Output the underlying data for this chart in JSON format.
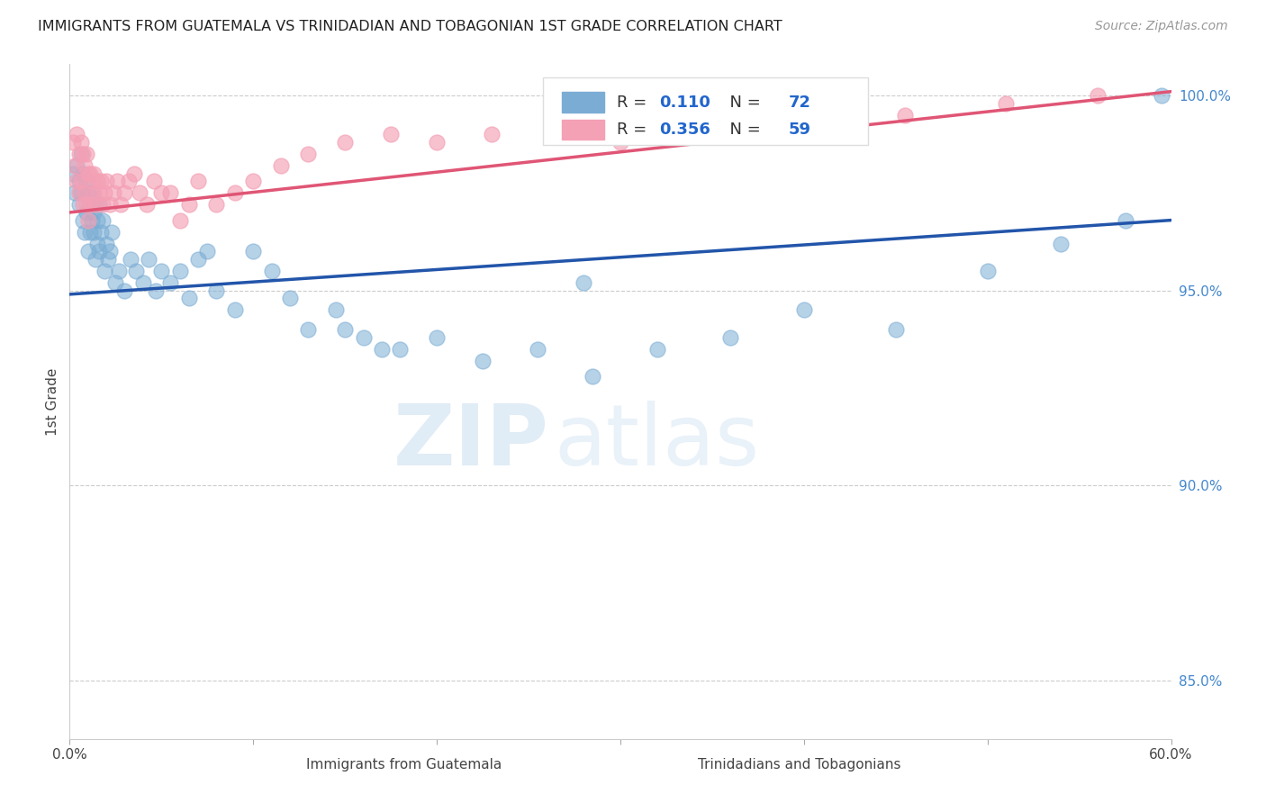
{
  "title": "IMMIGRANTS FROM GUATEMALA VS TRINIDADIAN AND TOBAGONIAN 1ST GRADE CORRELATION CHART",
  "source": "Source: ZipAtlas.com",
  "ylabel": "1st Grade",
  "xlim": [
    0.0,
    0.6
  ],
  "ylim": [
    0.835,
    1.008
  ],
  "yticks": [
    0.85,
    0.9,
    0.95,
    1.0
  ],
  "ytick_labels": [
    "85.0%",
    "90.0%",
    "95.0%",
    "100.0%"
  ],
  "blue_R": "0.110",
  "blue_N": "72",
  "pink_R": "0.356",
  "pink_N": "59",
  "blue_color": "#7BADD4",
  "pink_color": "#F4A0B5",
  "blue_line_color": "#2255AA",
  "pink_line_color": "#E05575",
  "legend_label_blue": "Immigrants from Guatemala",
  "legend_label_pink": "Trinidadians and Tobagonians",
  "watermark_zip": "ZIP",
  "watermark_atlas": "atlas",
  "blue_line_x0": 0.0,
  "blue_line_y0": 0.949,
  "blue_line_x1": 0.6,
  "blue_line_y1": 0.968,
  "pink_line_x0": 0.0,
  "pink_line_y0": 0.97,
  "pink_line_x1": 0.6,
  "pink_line_y1": 1.001,
  "blue_x": [
    0.002,
    0.003,
    0.004,
    0.005,
    0.005,
    0.006,
    0.006,
    0.007,
    0.007,
    0.008,
    0.008,
    0.009,
    0.009,
    0.01,
    0.01,
    0.011,
    0.011,
    0.012,
    0.012,
    0.013,
    0.013,
    0.014,
    0.014,
    0.015,
    0.015,
    0.016,
    0.016,
    0.017,
    0.018,
    0.019,
    0.02,
    0.021,
    0.022,
    0.023,
    0.025,
    0.027,
    0.03,
    0.033,
    0.036,
    0.04,
    0.043,
    0.047,
    0.05,
    0.055,
    0.06,
    0.065,
    0.07,
    0.08,
    0.09,
    0.1,
    0.11,
    0.12,
    0.13,
    0.145,
    0.16,
    0.18,
    0.2,
    0.225,
    0.255,
    0.285,
    0.32,
    0.36,
    0.4,
    0.45,
    0.5,
    0.54,
    0.575,
    0.595,
    0.15,
    0.17,
    0.075,
    0.28
  ],
  "blue_y": [
    0.98,
    0.975,
    0.982,
    0.978,
    0.972,
    0.985,
    0.975,
    0.98,
    0.968,
    0.975,
    0.965,
    0.978,
    0.97,
    0.975,
    0.96,
    0.972,
    0.965,
    0.975,
    0.968,
    0.97,
    0.965,
    0.972,
    0.958,
    0.968,
    0.962,
    0.972,
    0.96,
    0.965,
    0.968,
    0.955,
    0.962,
    0.958,
    0.96,
    0.965,
    0.952,
    0.955,
    0.95,
    0.958,
    0.955,
    0.952,
    0.958,
    0.95,
    0.955,
    0.952,
    0.955,
    0.948,
    0.958,
    0.95,
    0.945,
    0.96,
    0.955,
    0.948,
    0.94,
    0.945,
    0.938,
    0.935,
    0.938,
    0.932,
    0.935,
    0.928,
    0.935,
    0.938,
    0.945,
    0.94,
    0.955,
    0.962,
    0.968,
    1.0,
    0.94,
    0.935,
    0.96,
    0.952
  ],
  "pink_x": [
    0.002,
    0.003,
    0.004,
    0.004,
    0.005,
    0.005,
    0.006,
    0.006,
    0.007,
    0.007,
    0.008,
    0.008,
    0.009,
    0.009,
    0.01,
    0.01,
    0.011,
    0.011,
    0.012,
    0.013,
    0.013,
    0.014,
    0.015,
    0.016,
    0.017,
    0.018,
    0.019,
    0.02,
    0.022,
    0.024,
    0.026,
    0.028,
    0.03,
    0.032,
    0.035,
    0.038,
    0.042,
    0.046,
    0.05,
    0.055,
    0.06,
    0.065,
    0.07,
    0.08,
    0.09,
    0.1,
    0.115,
    0.13,
    0.15,
    0.175,
    0.2,
    0.23,
    0.265,
    0.3,
    0.345,
    0.4,
    0.455,
    0.51,
    0.56
  ],
  "pink_y": [
    0.988,
    0.982,
    0.99,
    0.978,
    0.985,
    0.975,
    0.988,
    0.978,
    0.985,
    0.972,
    0.982,
    0.975,
    0.985,
    0.972,
    0.98,
    0.968,
    0.98,
    0.972,
    0.978,
    0.98,
    0.975,
    0.972,
    0.978,
    0.975,
    0.978,
    0.972,
    0.975,
    0.978,
    0.972,
    0.975,
    0.978,
    0.972,
    0.975,
    0.978,
    0.98,
    0.975,
    0.972,
    0.978,
    0.975,
    0.975,
    0.968,
    0.972,
    0.978,
    0.972,
    0.975,
    0.978,
    0.982,
    0.985,
    0.988,
    0.99,
    0.988,
    0.99,
    0.992,
    0.988,
    0.992,
    0.995,
    0.995,
    0.998,
    1.0
  ]
}
